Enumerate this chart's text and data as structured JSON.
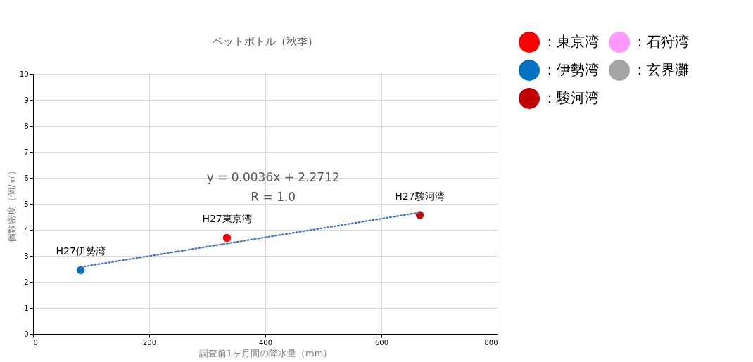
{
  "chart_data": {
    "type": "scatter",
    "title": "ペットボトル（秋季）",
    "xlabel": "調査前1ヶ月間の降水量（mm）",
    "ylabel": "個数密度（個/㎢）",
    "xlim": [
      0,
      800
    ],
    "xticks": [
      0,
      200,
      400,
      600,
      800
    ],
    "ylim": [
      0,
      10
    ],
    "yticks": [
      0,
      1,
      2,
      3,
      4,
      5,
      6,
      7,
      8,
      9,
      10
    ],
    "grid": true,
    "legend": "top right",
    "marker": "circle",
    "series": [
      {
        "name": "：東京湾",
        "color": "#ff0000",
        "x": [
          334
        ],
        "values": [
          3.69
        ]
      },
      {
        "name": "：伊勢湾",
        "color": "#0070c0",
        "x": [
          82
        ],
        "values": [
          2.45
        ]
      },
      {
        "name": "：駿河湾",
        "color": "#c00000",
        "x": [
          666
        ],
        "values": [
          4.57
        ]
      },
      {
        "name": "：石狩湾",
        "color": "#ff99ff"
      },
      {
        "name": "：玄界灘",
        "color": "#a5a5a5"
      },
      {
        "type": "line",
        "color": "#4472c4",
        "line_style": "dotted",
        "marker": "none",
        "x": [
          82,
          667
        ],
        "values": [
          2.57,
          4.67
        ]
      }
    ],
    "annotations": [
      "y = 0.0036x + 2.2712",
      "R = 1.0",
      {
        "text": "H27伊勢湾",
        "x": 82,
        "y": 2.45
      },
      {
        "text": "H27東京湾",
        "x": 334,
        "y": 3.69
      },
      {
        "text": "H27駿河湾",
        "x": 666,
        "y": 4.57
      }
    ]
  }
}
